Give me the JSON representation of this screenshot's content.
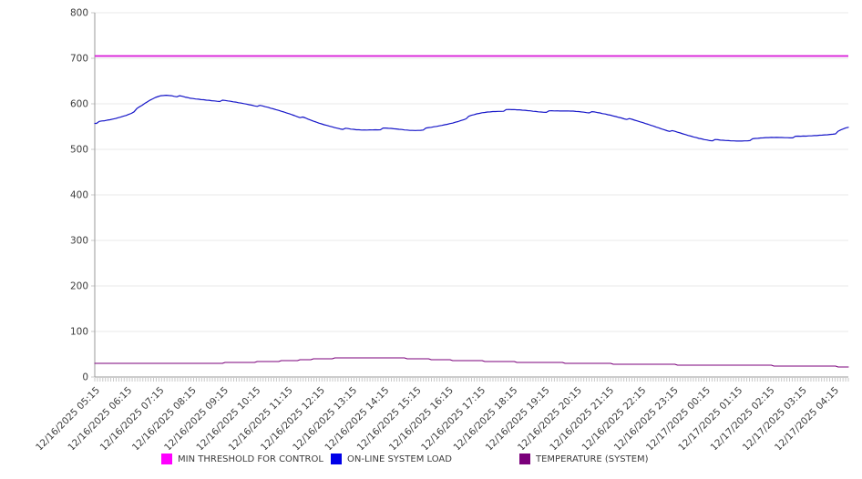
{
  "chart_data": {
    "type": "line",
    "title": "",
    "xlabel": "",
    "ylabel": "",
    "grid": true,
    "legend_position": "bottom",
    "y_axis": {
      "min": 0,
      "max": 800,
      "tick_interval": 100,
      "tick_labels": [
        "0",
        "100",
        "200",
        "300",
        "400",
        "500",
        "600",
        "700",
        "800"
      ]
    },
    "x_labels": [
      "12/16/2025 05:15",
      "12/16/2025 06:15",
      "12/16/2025 07:15",
      "12/16/2025 08:15",
      "12/16/2025 09:15",
      "12/16/2025 10:15",
      "12/16/2025 11:15",
      "12/16/2025 12:15",
      "12/16/2025 13:15",
      "12/16/2025 14:15",
      "12/16/2025 15:15",
      "12/16/2025 16:15",
      "12/16/2025 17:15",
      "12/16/2025 18:15",
      "12/16/2025 19:15",
      "12/16/2025 20:15",
      "12/16/2025 21:15",
      "12/16/2025 22:15",
      "12/16/2025 23:15",
      "12/17/2025 00:15",
      "12/17/2025 01:15",
      "12/17/2025 02:15",
      "12/17/2025 03:15",
      "12/17/2025 04:15"
    ],
    "series": [
      {
        "name": "MIN THRESHOLD FOR CONTROL",
        "color": "#D816D8",
        "swatch_color": "#FF00FF",
        "style": "threshold",
        "value": 705
      },
      {
        "name": "ON-LINE SYSTEM LOAD",
        "color": "#1515C8",
        "swatch_color": "#0000E8",
        "style": "noisy",
        "values": [
          559,
          578,
          618,
          611,
          606,
          596,
          579,
          556,
          543,
          545,
          543,
          557,
          580,
          586,
          583,
          584,
          575,
          558,
          538,
          522,
          519,
          526,
          528,
          536
        ],
        "end_value": 548
      },
      {
        "name": "TEMPERATURE (SYSTEM)",
        "color": "#7B007B",
        "swatch_color": "#7B007B",
        "style": "step",
        "values": [
          30,
          30,
          30,
          30,
          31,
          33,
          36,
          40,
          42,
          42,
          40,
          37,
          35,
          33,
          32,
          30,
          29,
          28,
          27,
          26,
          26,
          25,
          24,
          23
        ],
        "end_value": 22
      }
    ],
    "axis_colors": {
      "axis_line": "#9a9a9a",
      "grid_line": "#e8e8e8",
      "tick_mark": "#c8c8c8",
      "tick_text": "#3c3c3c"
    }
  }
}
